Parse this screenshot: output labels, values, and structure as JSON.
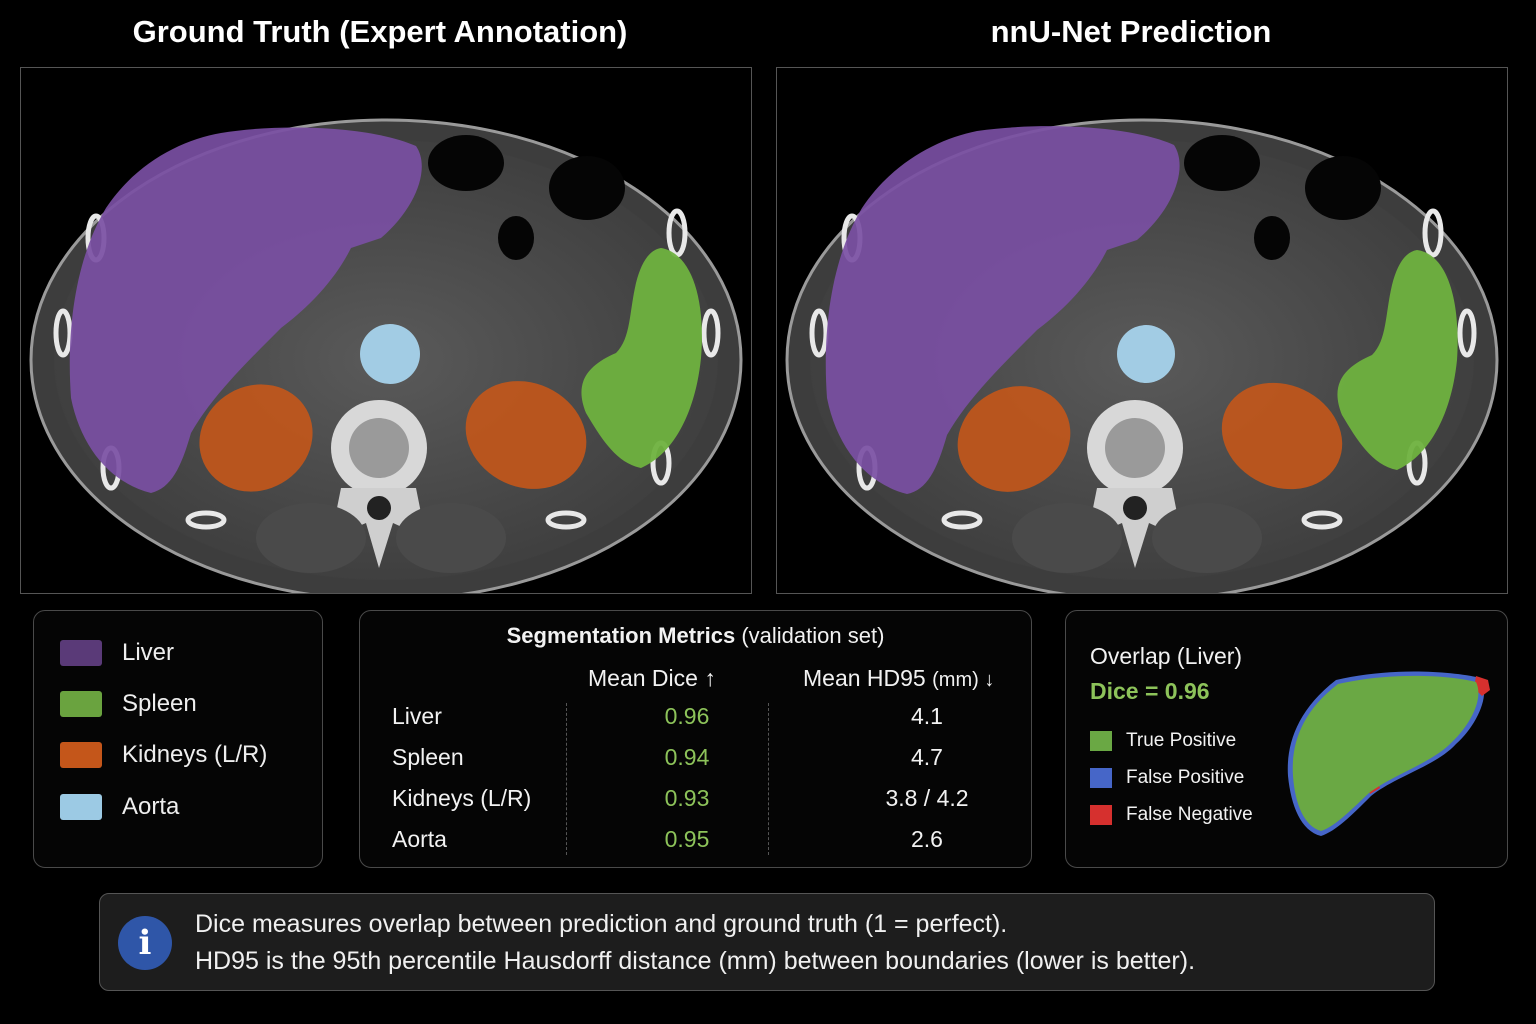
{
  "titles": {
    "left": "Ground Truth (Expert Annotation)",
    "right": "nnU-Net Prediction"
  },
  "colors": {
    "liver": "#7a4fa3",
    "spleen": "#6fb23f",
    "kidneys": "#c4561a",
    "aorta": "#a7d3ec",
    "true_positive": "#6aa844",
    "false_positive": "#4666c8",
    "false_negative": "#d6302e",
    "dice_accent": "#8dc35a",
    "info_icon": "#2f56a8"
  },
  "legend": [
    {
      "label": "Liver",
      "color": "#5a3a78"
    },
    {
      "label": "Spleen",
      "color": "#6aa33f"
    },
    {
      "label": "Kidneys (L/R)",
      "color": "#c4561a"
    },
    {
      "label": "Aorta",
      "color": "#9ccae4"
    }
  ],
  "metrics": {
    "title_bold": "Segmentation Metrics",
    "title_rest": "(validation set)",
    "col_dice": "Mean Dice ↑",
    "col_hd_bold": "Mean HD95",
    "col_hd_unit": "(mm) ↓",
    "rows": [
      {
        "organ": "Liver",
        "dice": "0.96",
        "hd95": "4.1"
      },
      {
        "organ": "Spleen",
        "dice": "0.94",
        "hd95": "4.7"
      },
      {
        "organ": "Kidneys (L/R)",
        "dice": "0.93",
        "hd95": "3.8 / 4.2"
      },
      {
        "organ": "Aorta",
        "dice": "0.95",
        "hd95": "2.6"
      }
    ]
  },
  "overlap": {
    "title": "Overlap (Liver)",
    "dice": "Dice = 0.96",
    "items": [
      {
        "label": "True Positive",
        "color": "#6aa844"
      },
      {
        "label": "False Positive",
        "color": "#4666c8"
      },
      {
        "label": "False Negative",
        "color": "#d6302e"
      }
    ]
  },
  "info": {
    "icon": "i",
    "icon_name": "info-icon",
    "line1": "Dice measures overlap between prediction and ground truth (1 = perfect).",
    "line2": "HD95 is the 95th percentile Hausdorff distance (mm) between boundaries (lower is better)."
  }
}
